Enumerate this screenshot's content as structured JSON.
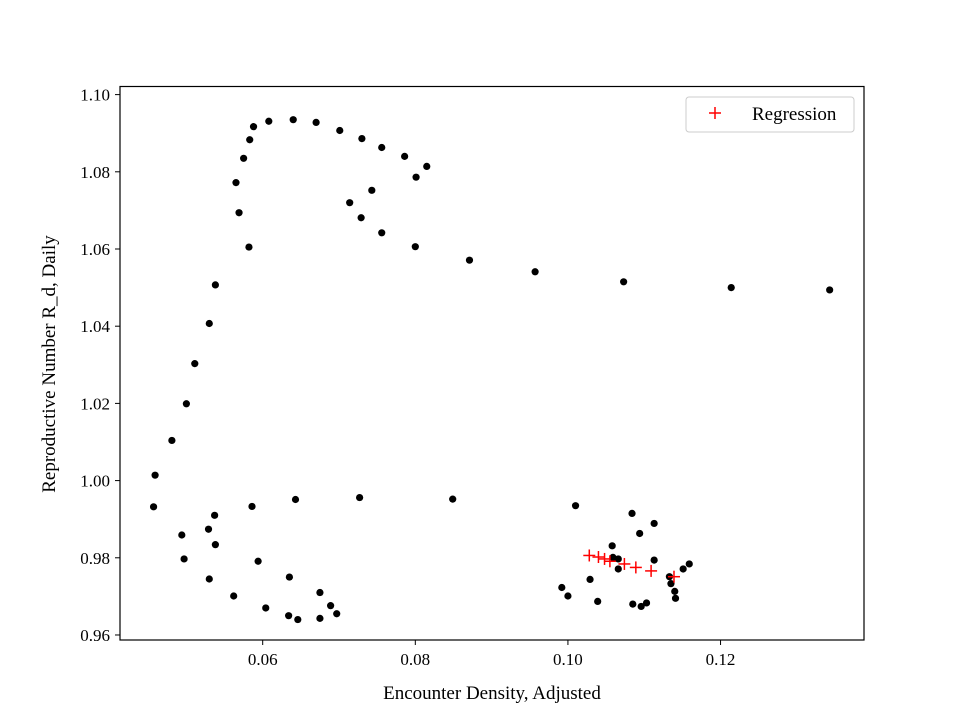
{
  "chart_data": {
    "type": "scatter",
    "title": "",
    "xlabel": "Encounter Density, Adjusted",
    "ylabel": "Reproductive Number R_d, Daily",
    "xlim": [
      0.0413,
      0.1388
    ],
    "ylim": [
      0.9587,
      1.1021
    ],
    "xticks": [
      {
        "value": 0.06,
        "label": "0.06"
      },
      {
        "value": 0.08,
        "label": "0.08"
      },
      {
        "value": 0.1,
        "label": "0.10"
      },
      {
        "value": 0.12,
        "label": "0.12"
      }
    ],
    "yticks": [
      {
        "value": 0.96,
        "label": "0.96"
      },
      {
        "value": 0.98,
        "label": "0.98"
      },
      {
        "value": 1.0,
        "label": "1.00"
      },
      {
        "value": 1.02,
        "label": "1.02"
      },
      {
        "value": 1.04,
        "label": "1.04"
      },
      {
        "value": 1.06,
        "label": "1.06"
      },
      {
        "value": 1.08,
        "label": "1.08"
      },
      {
        "value": 1.1,
        "label": "1.10"
      }
    ],
    "grid": false,
    "legend": {
      "position": "upper-right",
      "entries": [
        "Regression"
      ]
    },
    "series": [
      {
        "marker": "dot",
        "color": "#000000",
        "points": [
          [
            0.0457,
            0.9932
          ],
          [
            0.0459,
            1.0014
          ],
          [
            0.0481,
            1.0104
          ],
          [
            0.05,
            1.0199
          ],
          [
            0.0511,
            1.0303
          ],
          [
            0.053,
            1.0407
          ],
          [
            0.0538,
            1.0507
          ],
          [
            0.0582,
            1.0605
          ],
          [
            0.0569,
            1.0694
          ],
          [
            0.0565,
            1.0772
          ],
          [
            0.0575,
            1.0835
          ],
          [
            0.0583,
            1.0883
          ],
          [
            0.0588,
            1.0917
          ],
          [
            0.0608,
            1.0931
          ],
          [
            0.064,
            1.0935
          ],
          [
            0.067,
            1.0928
          ],
          [
            0.0701,
            1.0907
          ],
          [
            0.073,
            1.0886
          ],
          [
            0.0756,
            1.0863
          ],
          [
            0.0786,
            1.084
          ],
          [
            0.0815,
            1.0814
          ],
          [
            0.0801,
            1.0786
          ],
          [
            0.0743,
            1.0752
          ],
          [
            0.0714,
            1.072
          ],
          [
            0.0729,
            1.0681
          ],
          [
            0.0756,
            1.0642
          ],
          [
            0.08,
            1.0606
          ],
          [
            0.0871,
            1.0571
          ],
          [
            0.0957,
            1.0541
          ],
          [
            0.1073,
            1.0515
          ],
          [
            0.1214,
            1.05
          ],
          [
            0.1343,
            1.0494
          ],
          [
            0.0494,
            0.9859
          ],
          [
            0.0497,
            0.9797
          ],
          [
            0.053,
            0.9745
          ],
          [
            0.0562,
            0.9701
          ],
          [
            0.0604,
            0.967
          ],
          [
            0.0634,
            0.965
          ],
          [
            0.0646,
            0.964
          ],
          [
            0.0675,
            0.9643
          ],
          [
            0.0697,
            0.9655
          ],
          [
            0.0689,
            0.9676
          ],
          [
            0.0675,
            0.971
          ],
          [
            0.0635,
            0.975
          ],
          [
            0.0594,
            0.9791
          ],
          [
            0.0538,
            0.9834
          ],
          [
            0.0529,
            0.9874
          ],
          [
            0.0537,
            0.991
          ],
          [
            0.0586,
            0.9933
          ],
          [
            0.0643,
            0.9951
          ],
          [
            0.0727,
            0.9956
          ],
          [
            0.0849,
            0.9952
          ],
          [
            0.101,
            0.9935
          ],
          [
            0.0992,
            0.9723
          ],
          [
            0.1,
            0.9701
          ],
          [
            0.1029,
            0.9744
          ],
          [
            0.1039,
            0.9687
          ],
          [
            0.1058,
            0.9831
          ],
          [
            0.1059,
            0.9801
          ],
          [
            0.1066,
            0.9797
          ],
          [
            0.1066,
            0.9771
          ],
          [
            0.1084,
            0.9915
          ],
          [
            0.1085,
            0.968
          ],
          [
            0.1094,
            0.9863
          ],
          [
            0.1096,
            0.9674
          ],
          [
            0.1103,
            0.9683
          ],
          [
            0.1113,
            0.9889
          ],
          [
            0.1113,
            0.9794
          ],
          [
            0.1133,
            0.9751
          ],
          [
            0.1135,
            0.9733
          ],
          [
            0.114,
            0.9713
          ],
          [
            0.1141,
            0.9695
          ],
          [
            0.1151,
            0.9771
          ],
          [
            0.1159,
            0.9784
          ]
        ]
      },
      {
        "name": "Regression",
        "marker": "plus",
        "color": "#ff0000",
        "points": [
          [
            0.1028,
            0.9806
          ],
          [
            0.104,
            0.9802
          ],
          [
            0.1048,
            0.9797
          ],
          [
            0.1055,
            0.9791
          ],
          [
            0.1074,
            0.9784
          ],
          [
            0.1089,
            0.9775
          ],
          [
            0.1109,
            0.9766
          ],
          [
            0.1139,
            0.9751
          ]
        ]
      }
    ]
  }
}
